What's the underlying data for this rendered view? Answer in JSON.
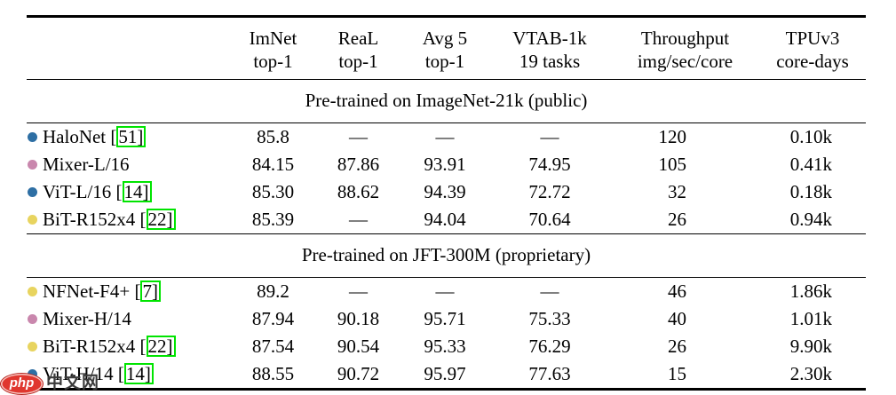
{
  "colors": {
    "blue": "#2e6fa4",
    "pink": "#c987ad",
    "yellow": "#e8d45f",
    "cite_border": "#00e400",
    "logo_red": "#e0372f"
  },
  "watermark": {
    "logo_text": "php",
    "site_text": "中文网"
  },
  "table": {
    "columns": [
      {
        "line1": "ImNet",
        "line2": "top-1"
      },
      {
        "line1": "ReaL",
        "line2": "top-1"
      },
      {
        "line1": "Avg 5",
        "line2": "top-1"
      },
      {
        "line1": "VTAB-1k",
        "line2": "19 tasks"
      },
      {
        "line1": "Throughput",
        "line2": "img/sec/core"
      },
      {
        "line1": "TPUv3",
        "line2": "core-days"
      }
    ],
    "sections": [
      {
        "title": "Pre-trained on ImageNet-21k (public)",
        "rows": [
          {
            "bullet": "blue",
            "name": "HaloNet",
            "cite": "51",
            "values": [
              "85.8",
              "—",
              "—",
              "—",
              "120",
              "0.10k"
            ]
          },
          {
            "bullet": "pink",
            "name": "Mixer-L/16",
            "cite": null,
            "values": [
              "84.15",
              "87.86",
              "93.91",
              "74.95",
              "105",
              "0.41k"
            ]
          },
          {
            "bullet": "blue",
            "name": "ViT-L/16",
            "cite": "14",
            "values": [
              "85.30",
              "88.62",
              "94.39",
              "72.72",
              "32",
              "0.18k"
            ]
          },
          {
            "bullet": "yellow",
            "name": "BiT-R152x4",
            "cite": "22",
            "values": [
              "85.39",
              "—",
              "94.04",
              "70.64",
              "26",
              "0.94k"
            ]
          }
        ]
      },
      {
        "title": "Pre-trained on JFT-300M (proprietary)",
        "rows": [
          {
            "bullet": "yellow",
            "name": "NFNet-F4+",
            "cite": "7",
            "values": [
              "89.2",
              "—",
              "—",
              "—",
              "46",
              "1.86k"
            ]
          },
          {
            "bullet": "pink",
            "name": "Mixer-H/14",
            "cite": null,
            "values": [
              "87.94",
              "90.18",
              "95.71",
              "75.33",
              "40",
              "1.01k"
            ]
          },
          {
            "bullet": "yellow",
            "name": "BiT-R152x4",
            "cite": "22",
            "values": [
              "87.54",
              "90.54",
              "95.33",
              "76.29",
              "26",
              "9.90k"
            ]
          },
          {
            "bullet": "blue",
            "name": "ViT-H/14",
            "cite": "14",
            "values": [
              "88.55",
              "90.72",
              "95.97",
              "77.63",
              "15",
              "2.30k"
            ]
          }
        ]
      }
    ]
  }
}
